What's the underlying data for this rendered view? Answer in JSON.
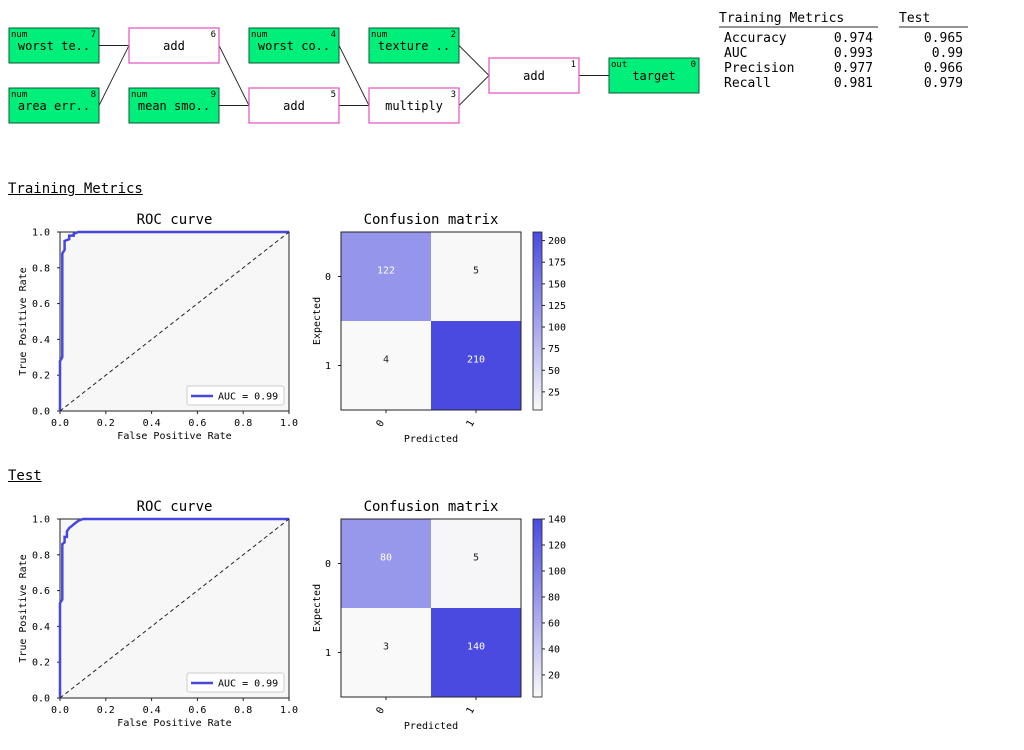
{
  "graph": {
    "nodes": [
      {
        "id": 7,
        "kind": "in",
        "tag": "num",
        "label": "worst te..",
        "col": 0,
        "row": 0
      },
      {
        "id": 8,
        "kind": "in",
        "tag": "num",
        "label": "area err..",
        "col": 0,
        "row": 1
      },
      {
        "id": 6,
        "kind": "op",
        "tag": "",
        "label": "add",
        "col": 1,
        "row": 0
      },
      {
        "id": 9,
        "kind": "in",
        "tag": "num",
        "label": "mean smo..",
        "col": 1,
        "row": 1
      },
      {
        "id": 4,
        "kind": "in",
        "tag": "num",
        "label": "worst co..",
        "col": 2,
        "row": 0
      },
      {
        "id": 5,
        "kind": "op",
        "tag": "",
        "label": "add",
        "col": 2,
        "row": 1
      },
      {
        "id": 2,
        "kind": "in",
        "tag": "num",
        "label": "texture ..",
        "col": 3,
        "row": 0
      },
      {
        "id": 3,
        "kind": "op",
        "tag": "",
        "label": "multiply",
        "col": 3,
        "row": 1
      },
      {
        "id": 1,
        "kind": "op",
        "tag": "",
        "label": "add",
        "col": 4,
        "row": 0.5
      },
      {
        "id": 0,
        "kind": "in",
        "tag": "out",
        "label": "target",
        "col": 5,
        "row": 0.5
      }
    ],
    "edges": [
      [
        7,
        6
      ],
      [
        8,
        6
      ],
      [
        6,
        5
      ],
      [
        9,
        5
      ],
      [
        4,
        3
      ],
      [
        5,
        3
      ],
      [
        2,
        1
      ],
      [
        3,
        1
      ],
      [
        1,
        0
      ]
    ]
  },
  "metrics": {
    "headers": [
      "Training Metrics",
      "Test"
    ],
    "rows": [
      {
        "name": "Accuracy",
        "train": "0.974",
        "test": "0.965"
      },
      {
        "name": "AUC",
        "train": "0.993",
        "test": "0.99"
      },
      {
        "name": "Precision",
        "train": "0.977",
        "test": "0.966"
      },
      {
        "name": "Recall",
        "train": "0.981",
        "test": "0.979"
      }
    ]
  },
  "sections": [
    {
      "title": "Training Metrics"
    },
    {
      "title": "Test"
    }
  ],
  "colors": {
    "accent": "#4747e0",
    "op_border": "#e85ac8",
    "input_fill": "#00ee7a",
    "panel_bg": "#f7f7f7"
  },
  "chart_data": [
    {
      "type": "line",
      "title": "ROC curve",
      "xlabel": "False Positive Rate",
      "ylabel": "True Positive Rate",
      "xlim": [
        0,
        1
      ],
      "ylim": [
        0,
        1
      ],
      "xticks": [
        "0.0",
        "0.2",
        "0.4",
        "0.6",
        "0.8",
        "1.0"
      ],
      "yticks": [
        "0.0",
        "0.2",
        "0.4",
        "0.6",
        "0.8",
        "1.0"
      ],
      "legend_position": "bottom-right",
      "series": [
        {
          "name": "AUC = 0.99",
          "x": [
            0,
            0,
            0.01,
            0.01,
            0.02,
            0.02,
            0.04,
            0.04,
            0.06,
            0.06,
            0.08,
            0.1,
            1.0
          ],
          "y": [
            0,
            0.28,
            0.3,
            0.88,
            0.9,
            0.95,
            0.96,
            0.98,
            0.98,
            0.99,
            1.0,
            1.0,
            1.0
          ]
        },
        {
          "name": "",
          "x": [
            0,
            1
          ],
          "y": [
            0,
            1
          ],
          "dashed": true
        }
      ]
    },
    {
      "type": "heatmap",
      "title": "Confusion matrix",
      "xlabel": "Predicted",
      "ylabel": "Expected",
      "x_categories": [
        "0",
        "1"
      ],
      "y_categories": [
        "0",
        "1"
      ],
      "values": [
        [
          122,
          5
        ],
        [
          4,
          210
        ]
      ],
      "colorbar_ticks": [
        25,
        50,
        75,
        100,
        125,
        150,
        175,
        200
      ],
      "vmin": 4,
      "vmax": 210
    },
    {
      "type": "line",
      "title": "ROC curve",
      "xlabel": "False Positive Rate",
      "ylabel": "True Positive Rate",
      "xlim": [
        0,
        1
      ],
      "ylim": [
        0,
        1
      ],
      "xticks": [
        "0.0",
        "0.2",
        "0.4",
        "0.6",
        "0.8",
        "1.0"
      ],
      "yticks": [
        "0.0",
        "0.2",
        "0.4",
        "0.6",
        "0.8",
        "1.0"
      ],
      "legend_position": "bottom-right",
      "series": [
        {
          "name": "AUC = 0.99",
          "x": [
            0,
            0,
            0.01,
            0.01,
            0.02,
            0.02,
            0.03,
            0.03,
            0.04,
            0.05,
            0.06,
            0.08,
            0.1,
            1.0
          ],
          "y": [
            0,
            0.53,
            0.55,
            0.86,
            0.87,
            0.9,
            0.9,
            0.93,
            0.95,
            0.96,
            0.97,
            0.99,
            1.0,
            1.0
          ]
        },
        {
          "name": "",
          "x": [
            0,
            1
          ],
          "y": [
            0,
            1
          ],
          "dashed": true
        }
      ]
    },
    {
      "type": "heatmap",
      "title": "Confusion matrix",
      "xlabel": "Predicted",
      "ylabel": "Expected",
      "x_categories": [
        "0",
        "1"
      ],
      "y_categories": [
        "0",
        "1"
      ],
      "values": [
        [
          80,
          5
        ],
        [
          3,
          140
        ]
      ],
      "colorbar_ticks": [
        20,
        40,
        60,
        80,
        100,
        120,
        140
      ],
      "vmin": 3,
      "vmax": 140
    }
  ]
}
